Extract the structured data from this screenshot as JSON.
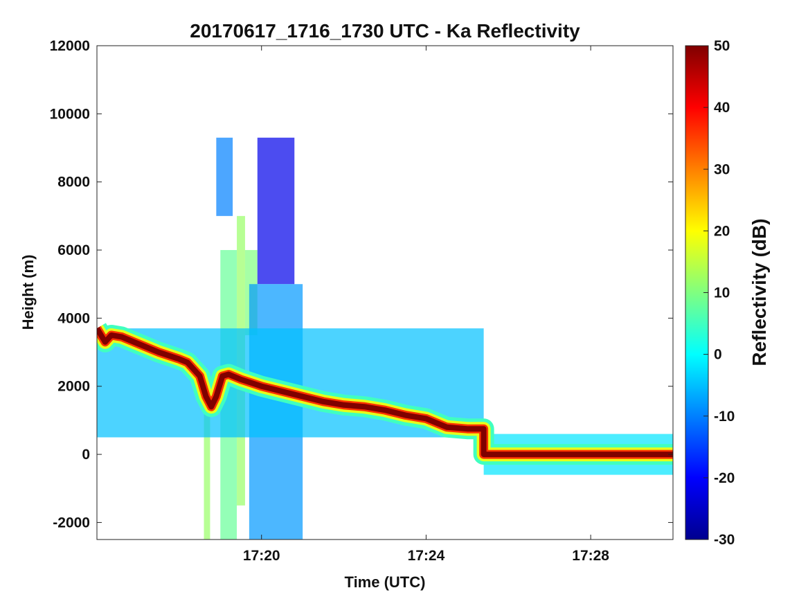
{
  "chart_data": {
    "type": "heatmap",
    "title": "20170617_1716_1730 UTC - Ka Reflectivity",
    "xlabel": "Time (UTC)",
    "ylabel": "Height (m)",
    "xlim_minutes_after_1716": [
      0.0,
      14.0
    ],
    "ylim": [
      -2500,
      12000
    ],
    "xticks": [
      {
        "minute": 4,
        "label": "17:20"
      },
      {
        "minute": 8,
        "label": "17:24"
      },
      {
        "minute": 12,
        "label": "17:28"
      }
    ],
    "yticks": [
      -2000,
      0,
      2000,
      4000,
      6000,
      8000,
      10000,
      12000
    ],
    "grid": false,
    "colorbar": {
      "label": "Reflectivity (dB)",
      "range": [
        -30,
        50
      ],
      "ticks": [
        -30,
        -20,
        -10,
        0,
        10,
        20,
        30,
        40,
        50
      ],
      "colormap": "jet",
      "colors": [
        "#00008f",
        "#0000ff",
        "#0080ff",
        "#00ffff",
        "#80ff80",
        "#ffff00",
        "#ff8000",
        "#ff0000",
        "#800000"
      ]
    },
    "surface_echo": {
      "reflectivity_db": 50,
      "points": [
        {
          "t": 0.0,
          "h": 3700
        },
        {
          "t": 0.2,
          "h": 3300
        },
        {
          "t": 0.35,
          "h": 3500
        },
        {
          "t": 0.6,
          "h": 3450
        },
        {
          "t": 1.0,
          "h": 3250
        },
        {
          "t": 1.5,
          "h": 3000
        },
        {
          "t": 2.0,
          "h": 2800
        },
        {
          "t": 2.2,
          "h": 2700
        },
        {
          "t": 2.5,
          "h": 2300
        },
        {
          "t": 2.65,
          "h": 1700
        },
        {
          "t": 2.78,
          "h": 1400
        },
        {
          "t": 2.9,
          "h": 1700
        },
        {
          "t": 3.05,
          "h": 2300
        },
        {
          "t": 3.2,
          "h": 2350
        },
        {
          "t": 3.5,
          "h": 2200
        },
        {
          "t": 4.0,
          "h": 2000
        },
        {
          "t": 4.5,
          "h": 1850
        },
        {
          "t": 5.0,
          "h": 1700
        },
        {
          "t": 5.5,
          "h": 1550
        },
        {
          "t": 6.0,
          "h": 1450
        },
        {
          "t": 6.5,
          "h": 1400
        },
        {
          "t": 7.0,
          "h": 1300
        },
        {
          "t": 7.5,
          "h": 1150
        },
        {
          "t": 8.0,
          "h": 1050
        },
        {
          "t": 8.5,
          "h": 800
        },
        {
          "t": 9.0,
          "h": 750
        },
        {
          "t": 9.4,
          "h": 750
        },
        {
          "t": 9.4,
          "h": 0
        },
        {
          "t": 14.0,
          "h": 0
        }
      ]
    },
    "echo_regions": [
      {
        "t0": 3.0,
        "t1": 3.4,
        "h0": -2500,
        "h1": 6000,
        "reflectivity_db": 8
      },
      {
        "t0": 3.4,
        "t1": 3.6,
        "h0": -1500,
        "h1": 7000,
        "reflectivity_db": 12
      },
      {
        "t0": 2.6,
        "t1": 2.75,
        "h0": -2500,
        "h1": 1500,
        "reflectivity_db": 12
      },
      {
        "t0": 3.6,
        "t1": 3.9,
        "h0": 3500,
        "h1": 6000,
        "reflectivity_db": 10
      },
      {
        "t0": 3.9,
        "t1": 4.8,
        "h0": 5000,
        "h1": 9300,
        "reflectivity_db": -22
      },
      {
        "t0": 3.7,
        "t1": 5.0,
        "h0": -2500,
        "h1": 5000,
        "reflectivity_db": -8
      },
      {
        "t0": 2.9,
        "t1": 3.3,
        "h0": 7000,
        "h1": 9300,
        "reflectivity_db": -10
      },
      {
        "t0": 0.0,
        "t1": 9.4,
        "h0": 500,
        "h1": 3700,
        "reflectivity_db": -5
      },
      {
        "t0": 9.4,
        "t1": 14.0,
        "h0": -600,
        "h1": 600,
        "reflectivity_db": -2
      }
    ]
  }
}
